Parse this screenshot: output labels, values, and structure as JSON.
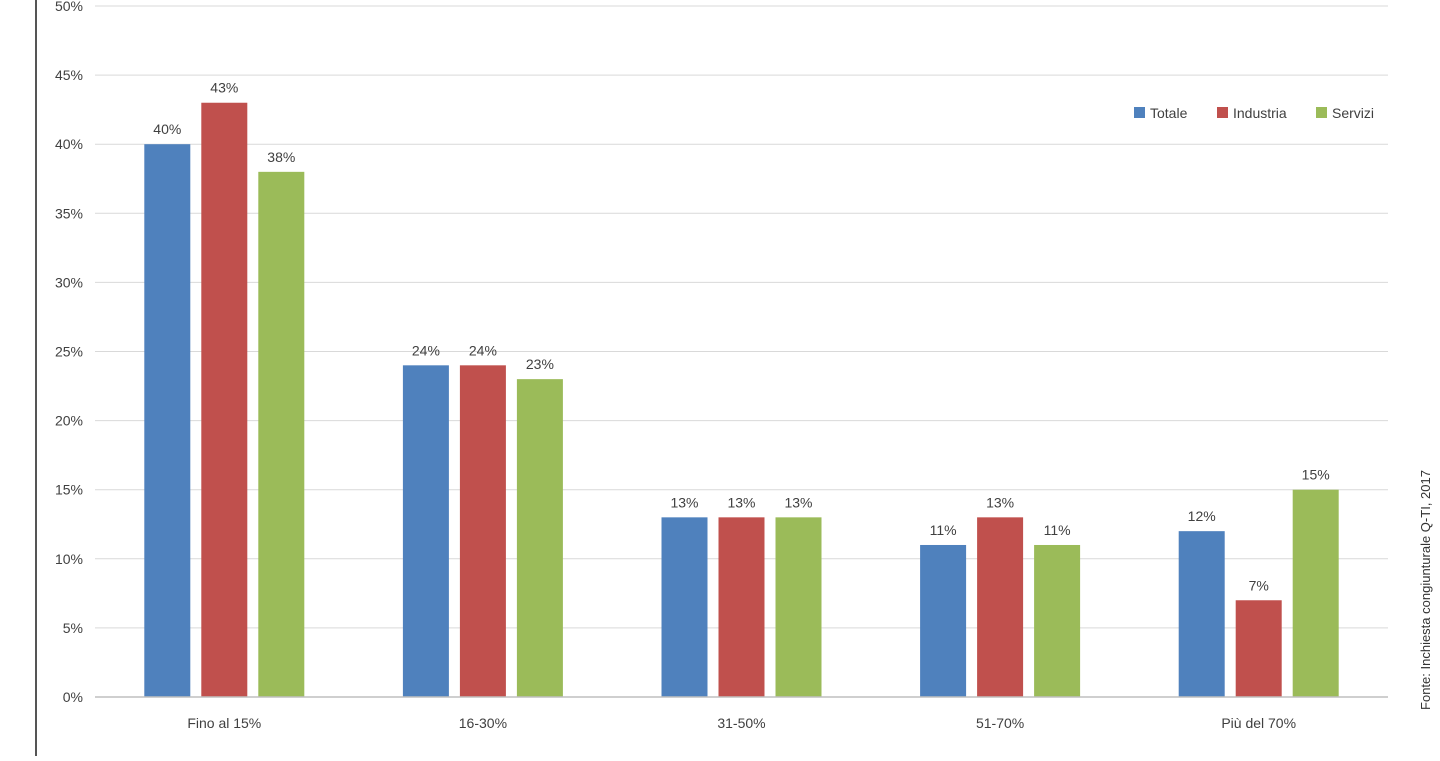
{
  "chart_data": {
    "type": "bar",
    "categories": [
      "Fino al 15%",
      "16-30%",
      "31-50%",
      "51-70%",
      "Più del 70%"
    ],
    "series": [
      {
        "name": "Totale",
        "color": "#4f81bd",
        "values": [
          40,
          24,
          13,
          11,
          12
        ]
      },
      {
        "name": "Industria",
        "color": "#c0504d",
        "values": [
          43,
          24,
          13,
          13,
          7
        ]
      },
      {
        "name": "Servizi",
        "color": "#9bbb59",
        "values": [
          38,
          23,
          13,
          11,
          15
        ]
      }
    ],
    "data_labels": [
      [
        "40%",
        "24%",
        "13%",
        "11%",
        "12%"
      ],
      [
        "43%",
        "24%",
        "13%",
        "13%",
        "7%"
      ],
      [
        "38%",
        "23%",
        "13%",
        "11%",
        "15%"
      ]
    ],
    "yticks": [
      "0%",
      "5%",
      "10%",
      "15%",
      "20%",
      "25%",
      "30%",
      "35%",
      "40%",
      "45%",
      "50%"
    ],
    "ylim": [
      0,
      50
    ],
    "grid": true,
    "legend_position": "top-right",
    "title": "",
    "xlabel": "",
    "ylabel": "",
    "source_note": "Fonte: Inchiesta congiunturale Q-TI, 2017"
  }
}
